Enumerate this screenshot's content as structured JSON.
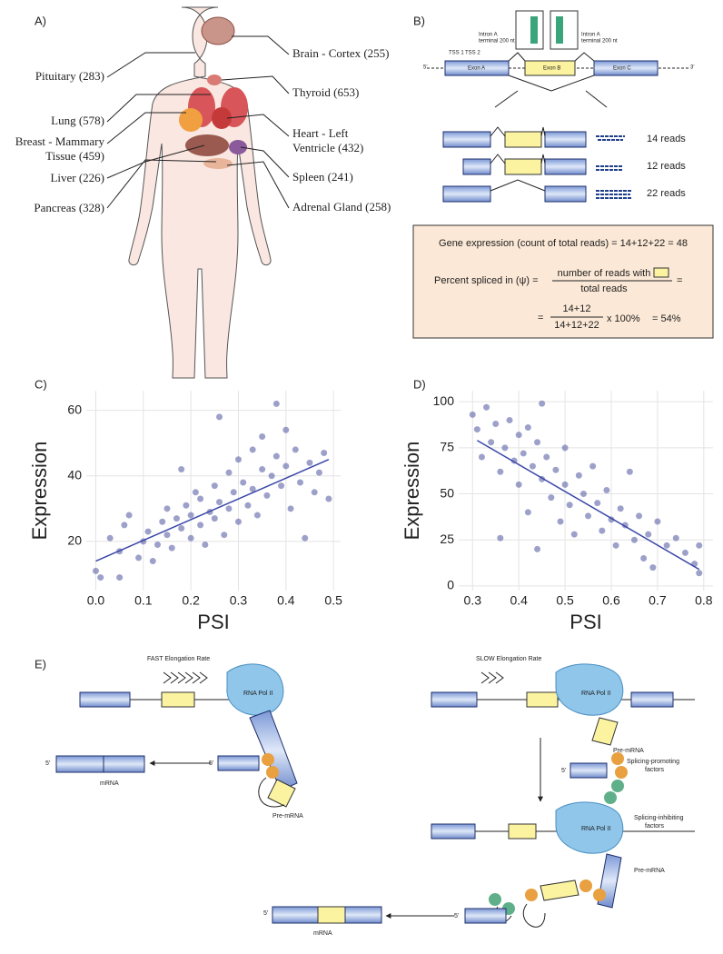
{
  "panel_a": {
    "label": "A)",
    "left_labels": [
      "Pituitary (283)",
      "Lung (578)",
      "Breast - Mammary",
      "Tissue (459)",
      "Liver (226)",
      "Pancreas (328)"
    ],
    "right_labels": [
      "Brain - Cortex (255)",
      "Thyroid (653)",
      "Heart - Left",
      "Ventricle (432)",
      "Spleen (241)",
      "Adrenal Gland (258)"
    ]
  },
  "panel_b": {
    "label": "B)",
    "intron_labels": [
      "Intron A",
      "terminal 200 nt",
      "Intron A",
      "terminal 200 nt"
    ],
    "tss": [
      "TSS 1",
      "TSS 2"
    ],
    "exons": [
      "Exon A",
      "Exon B",
      "Exon C"
    ],
    "ends": [
      "5'",
      "3'"
    ],
    "reads": [
      "14 reads",
      "12 reads",
      "22 reads"
    ],
    "box": {
      "line1": "Gene expression (count of total reads) = 14+12+22 = 48",
      "psi_label": "Percent spliced in (ψ) =",
      "numerator": "number of reads with",
      "denominator": "total reads",
      "equals": "=",
      "num2": "14+12",
      "den2": "14+12+22",
      "times": "x 100%",
      "result": "= 54%"
    }
  },
  "chart_data": [
    {
      "type": "scatter",
      "label": "C)",
      "x_label": "PSI",
      "y_label": "Expression",
      "color": "#5b63a6",
      "line_color": "#3a47a8",
      "grid": true,
      "xlim": [
        -0.02,
        0.515
      ],
      "xticks": [
        {
          "value": 0,
          "label": "0.0"
        },
        0.1,
        0.2,
        0.3,
        0.4,
        0.5
      ],
      "ylim": [
        5,
        66
      ],
      "yticks": [
        20,
        40,
        60
      ],
      "x": [
        0,
        0.01,
        0.03,
        0.05,
        0.05,
        0.06,
        0.07,
        0.09,
        0.1,
        0.11,
        0.12,
        0.13,
        0.14,
        0.15,
        0.15,
        0.16,
        0.17,
        0.18,
        0.18,
        0.19,
        0.2,
        0.2,
        0.21,
        0.22,
        0.22,
        0.23,
        0.24,
        0.25,
        0.25,
        0.26,
        0.26,
        0.27,
        0.28,
        0.28,
        0.29,
        0.3,
        0.3,
        0.31,
        0.32,
        0.33,
        0.33,
        0.34,
        0.35,
        0.35,
        0.36,
        0.37,
        0.38,
        0.38,
        0.39,
        0.4,
        0.4,
        0.41,
        0.42,
        0.43,
        0.44,
        0.45,
        0.46,
        0.47,
        0.48,
        0.49
      ],
      "values": [
        11,
        9,
        21,
        17,
        9,
        25,
        28,
        15,
        20,
        23,
        14,
        19,
        26,
        30,
        22,
        18,
        27,
        42,
        24,
        31,
        21,
        28,
        35,
        25,
        33,
        19,
        29,
        37,
        27,
        58,
        32,
        22,
        30,
        41,
        35,
        26,
        45,
        38,
        31,
        48,
        36,
        28,
        42,
        52,
        34,
        40,
        62,
        46,
        37,
        54,
        43,
        30,
        48,
        38,
        21,
        44,
        35,
        41,
        47,
        33
      ],
      "trend": {
        "x": [
          0,
          0.49
        ],
        "values": [
          14,
          45
        ]
      }
    },
    {
      "type": "scatter",
      "label": "D)",
      "x_label": "PSI",
      "y_label": "Expression",
      "color": "#5b63a6",
      "line_color": "#3a47a8",
      "grid": true,
      "xlim": [
        0.27,
        0.82
      ],
      "xticks": [
        0.3,
        0.4,
        0.5,
        0.6,
        0.7,
        0.8
      ],
      "ylim": [
        -2.5,
        106
      ],
      "yticks": [
        0,
        25,
        50,
        75,
        100
      ],
      "x": [
        0.3,
        0.31,
        0.32,
        0.33,
        0.34,
        0.35,
        0.36,
        0.36,
        0.37,
        0.38,
        0.39,
        0.4,
        0.4,
        0.41,
        0.42,
        0.42,
        0.43,
        0.44,
        0.44,
        0.45,
        0.45,
        0.46,
        0.47,
        0.48,
        0.49,
        0.5,
        0.5,
        0.51,
        0.52,
        0.53,
        0.54,
        0.55,
        0.56,
        0.57,
        0.58,
        0.59,
        0.6,
        0.61,
        0.62,
        0.63,
        0.64,
        0.65,
        0.66,
        0.67,
        0.68,
        0.69,
        0.7,
        0.72,
        0.74,
        0.76,
        0.78,
        0.79,
        0.79
      ],
      "values": [
        93,
        85,
        70,
        97,
        78,
        88,
        62,
        26,
        75,
        90,
        68,
        82,
        55,
        72,
        40,
        86,
        65,
        78,
        20,
        99,
        58,
        70,
        48,
        63,
        35,
        55,
        75,
        44,
        28,
        60,
        50,
        38,
        65,
        45,
        30,
        52,
        36,
        22,
        42,
        33,
        62,
        25,
        38,
        15,
        28,
        10,
        35,
        22,
        26,
        18,
        12,
        7,
        22
      ],
      "trend": {
        "x": [
          0.31,
          0.79
        ],
        "values": [
          79,
          9
        ]
      }
    }
  ],
  "panel_e": {
    "label": "E)",
    "fast": "FAST Elongation Rate",
    "slow": "SLOW Elongation Rate",
    "pol": [
      "RNA Pol II",
      "RNA Pol II",
      "RNA Pol II"
    ],
    "five": [
      "5'",
      "5'",
      "5'",
      "5'",
      "5'"
    ],
    "mrna": [
      "mRNA",
      "mRNA"
    ],
    "pre": [
      "Pre-mRNA",
      "Pre-mRNA",
      "Pre-mRNA"
    ],
    "promoting": [
      "Splicing-promoting",
      "factors"
    ],
    "inhibiting": [
      "Splicing-inhibiting",
      "factors"
    ]
  }
}
